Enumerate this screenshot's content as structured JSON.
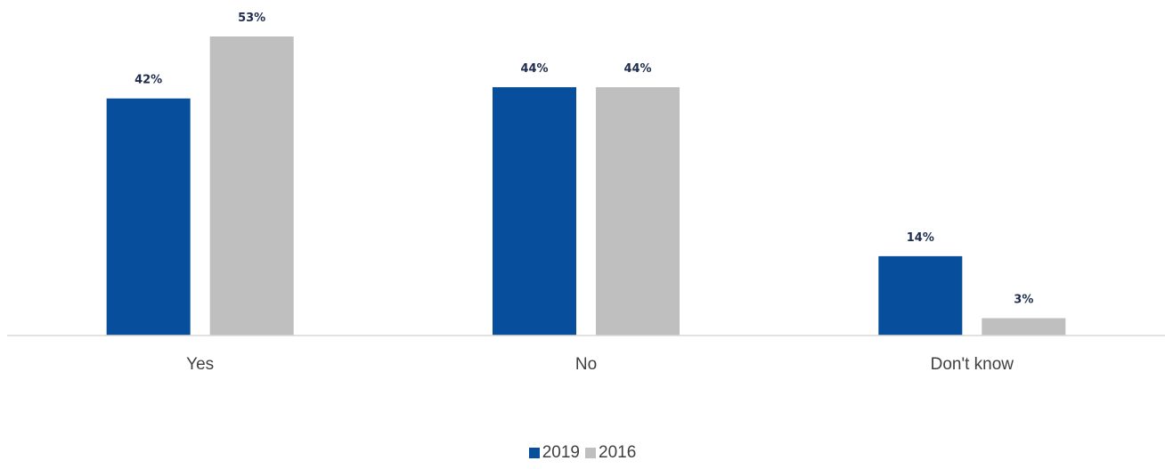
{
  "chart_data": {
    "type": "bar",
    "categories": [
      "Yes",
      "No",
      "Don't know"
    ],
    "series": [
      {
        "name": "2019",
        "values": [
          42,
          44,
          14
        ],
        "labels": [
          "42%",
          "44%",
          "14%"
        ],
        "color": "#074E9C"
      },
      {
        "name": "2016",
        "values": [
          53,
          44,
          3
        ],
        "labels": [
          "53%",
          "44%",
          "3%"
        ],
        "color": "#BFBFBF"
      }
    ],
    "ylim": [
      0,
      53
    ],
    "grid": false,
    "legend": "bottom-center",
    "axis_color": "#D9D9D9"
  }
}
